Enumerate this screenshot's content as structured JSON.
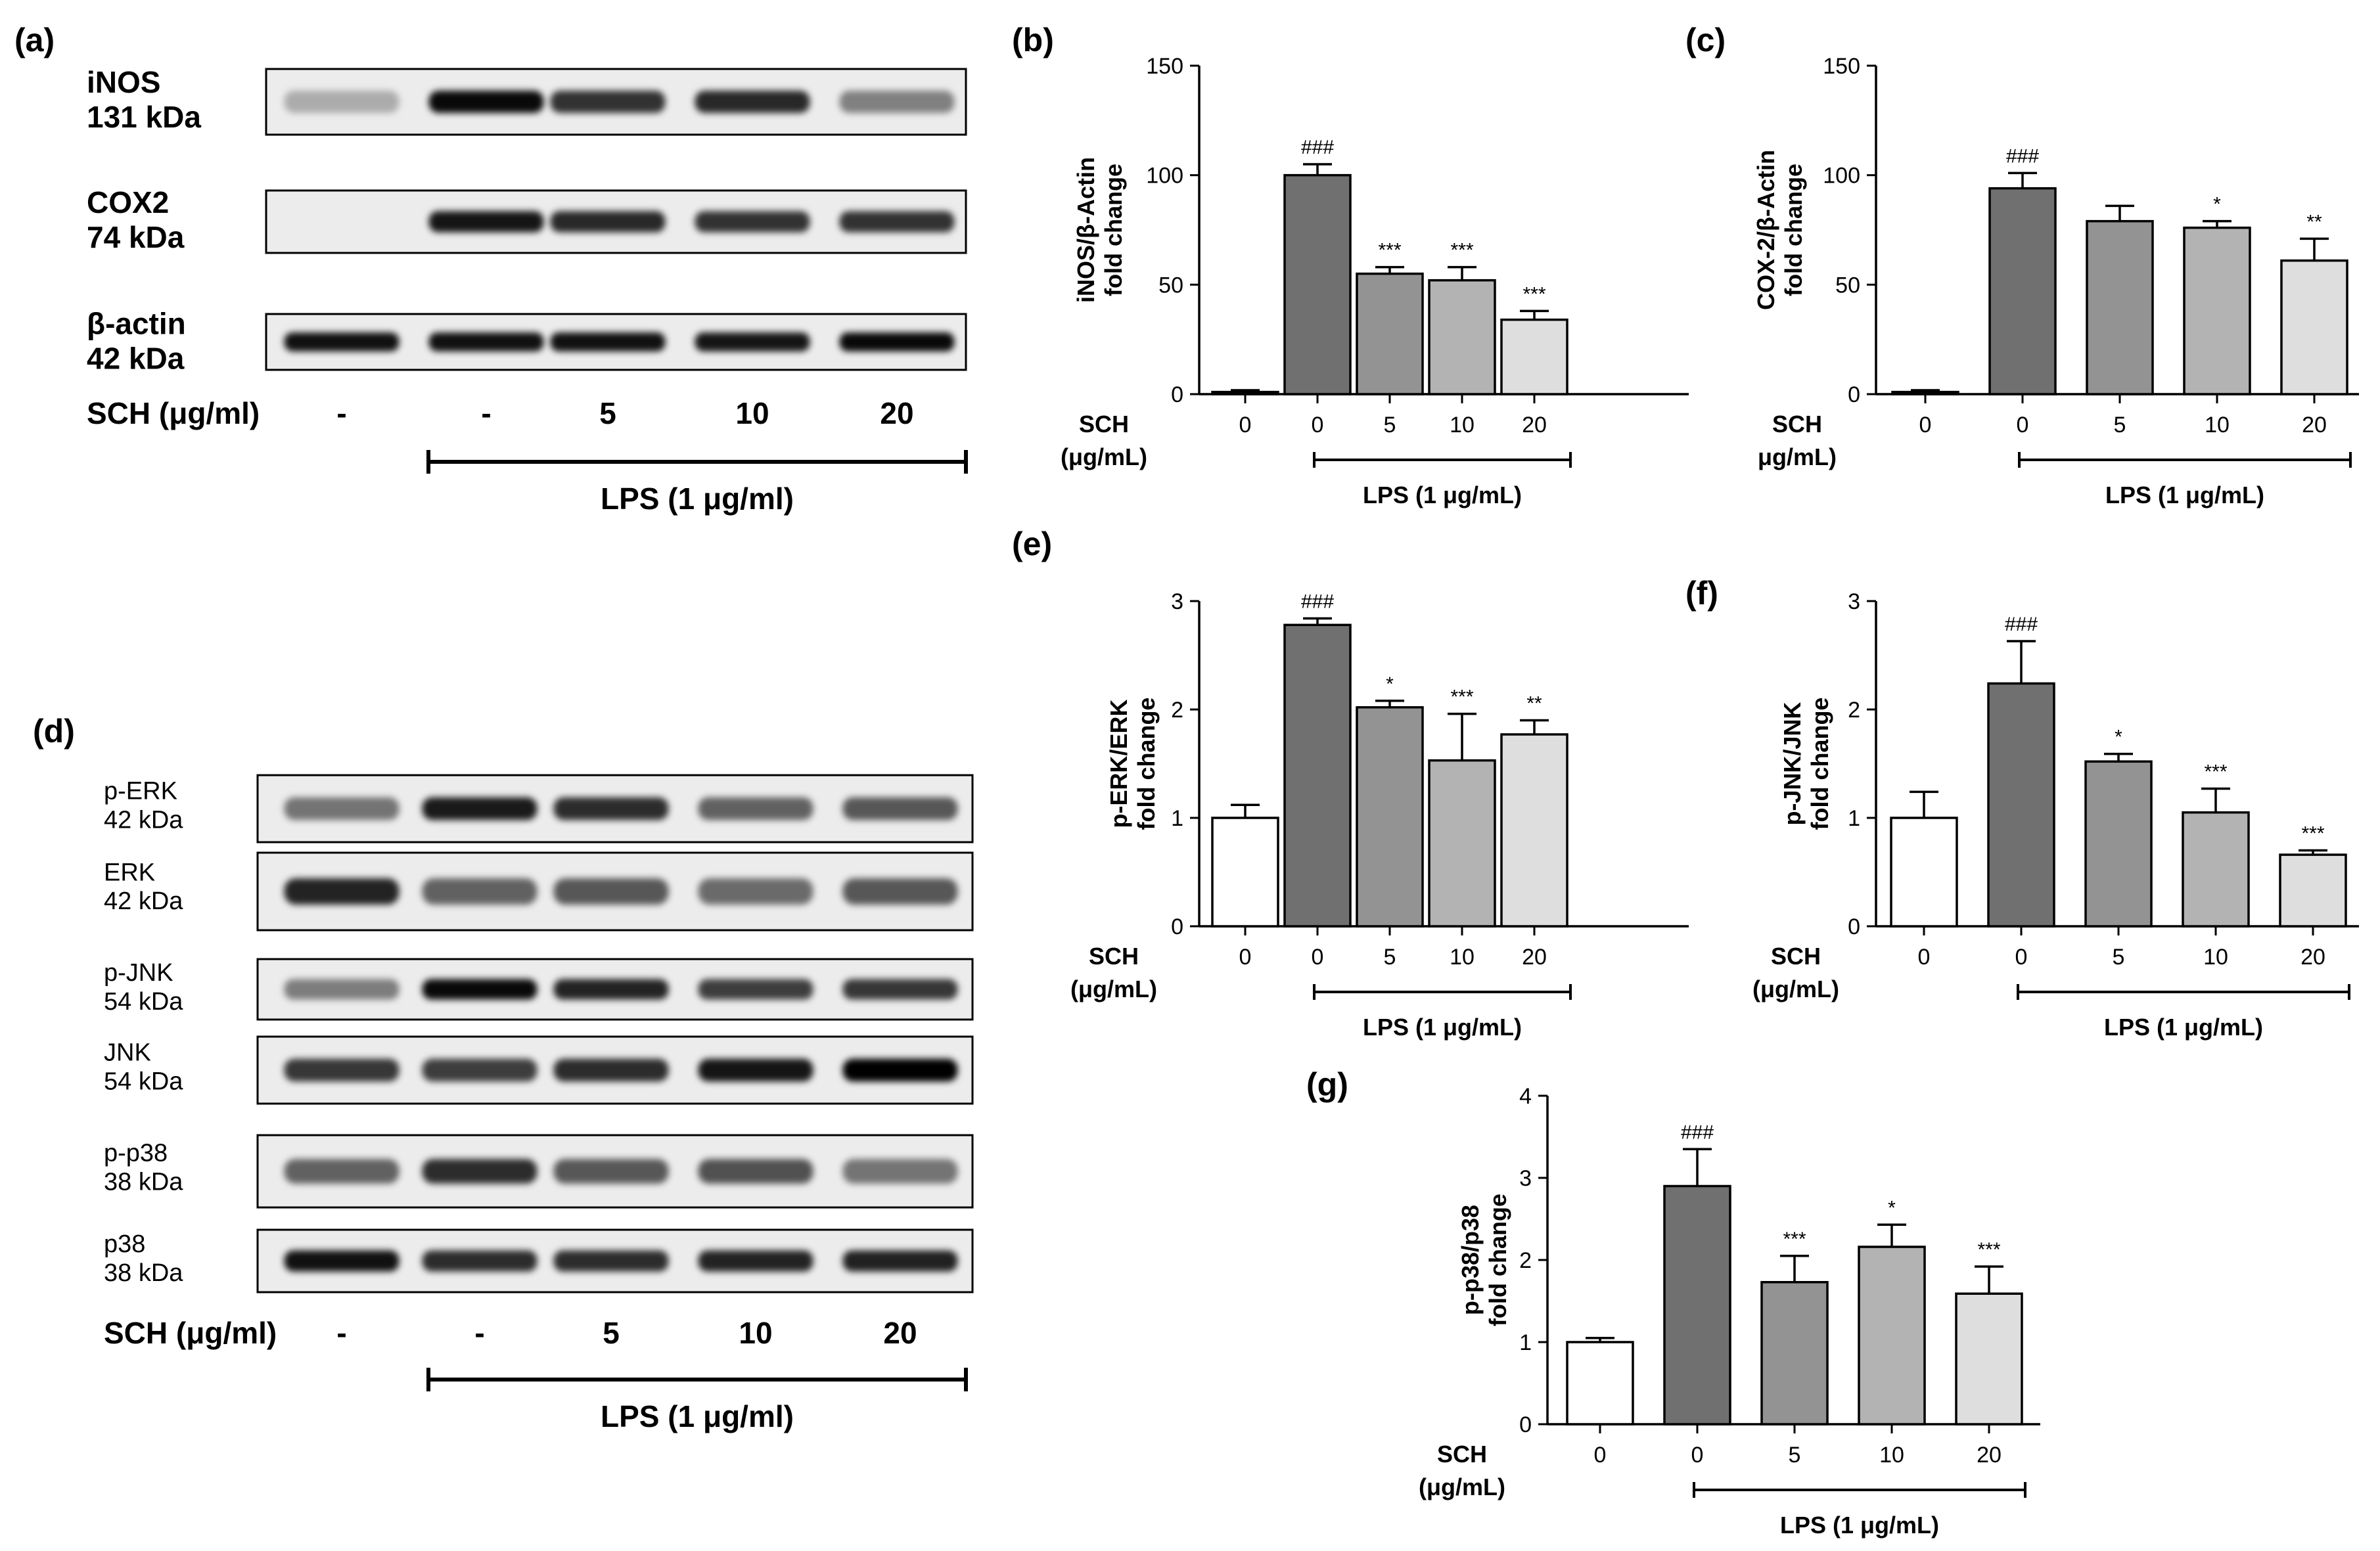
{
  "panel_labels": {
    "a": "(a)",
    "b": "(b)",
    "c": "(c)",
    "d": "(d)",
    "e": "(e)",
    "f": "(f)",
    "g": "(g)"
  },
  "blot_a": {
    "rows": [
      {
        "name": "iNOS",
        "kda": "131 kDa",
        "intensity": [
          0.03,
          0.95,
          0.72,
          0.78,
          0.28
        ]
      },
      {
        "name": "COX2",
        "kda": "74 kDa",
        "intensity": [
          0.0,
          0.88,
          0.78,
          0.72,
          0.72
        ]
      },
      {
        "name": "β-actin",
        "kda": "42 kDa",
        "intensity": [
          0.9,
          0.9,
          0.9,
          0.88,
          0.95
        ]
      }
    ],
    "sch_label": "SCH  (μg/ml)",
    "lanes": [
      "-",
      "-",
      "5",
      "10",
      "20"
    ],
    "lps_label": "LPS (1 μg/ml)"
  },
  "blot_d": {
    "rows": [
      {
        "name": "p-ERK",
        "kda": "42 kDa",
        "intensity": [
          0.35,
          0.85,
          0.75,
          0.45,
          0.5
        ]
      },
      {
        "name": "ERK",
        "kda": "42 kDa",
        "intensity": [
          0.8,
          0.45,
          0.5,
          0.4,
          0.5
        ]
      },
      {
        "name": "p-JNK",
        "kda": "54 kDa",
        "intensity": [
          0.3,
          0.95,
          0.8,
          0.65,
          0.7
        ]
      },
      {
        "name": "JNK",
        "kda": "54 kDa",
        "intensity": [
          0.7,
          0.65,
          0.75,
          0.88,
          1.0
        ]
      },
      {
        "name": "p-p38",
        "kda": "38 kDa",
        "intensity": [
          0.45,
          0.75,
          0.5,
          0.55,
          0.35
        ]
      },
      {
        "name": "p38",
        "kda": "38 kDa",
        "intensity": [
          0.9,
          0.75,
          0.75,
          0.8,
          0.82
        ]
      }
    ],
    "sch_label": "SCH  (μg/ml)",
    "lanes": [
      "-",
      "-",
      "5",
      "10",
      "20"
    ],
    "lps_label": "LPS (1 μg/ml)"
  },
  "chart_data": [
    {
      "id": "b",
      "type": "bar",
      "categories": [
        "0",
        "0",
        "5",
        "10",
        "20"
      ],
      "values": [
        1,
        100,
        55,
        52,
        34
      ],
      "errors": [
        0.8,
        5,
        3,
        6,
        4
      ],
      "significance": [
        "",
        "###",
        "***",
        "***",
        "***"
      ],
      "ylabel": [
        "iNOS/β-Actin",
        "fold change"
      ],
      "ylim": [
        0,
        150
      ],
      "yticks": [
        "0",
        "50",
        "100",
        "150"
      ],
      "sch_label": [
        "SCH",
        "(μg/mL)"
      ],
      "lps_label": "LPS (1 μg/mL)",
      "bar_colors": [
        "#ffffff",
        "#707070",
        "#939393",
        "#b3b3b3",
        "#dedede"
      ]
    },
    {
      "id": "c",
      "type": "bar",
      "categories": [
        "0",
        "0",
        "5",
        "10",
        "20"
      ],
      "values": [
        1,
        94,
        79,
        76,
        61
      ],
      "errors": [
        0.8,
        7,
        7,
        3,
        10
      ],
      "significance": [
        "",
        "###",
        "",
        "*",
        "**"
      ],
      "ylabel": [
        "COX-2/β-Actin",
        "fold change"
      ],
      "ylim": [
        0,
        150
      ],
      "yticks": [
        "0",
        "50",
        "100",
        "150"
      ],
      "sch_label": [
        "SCH",
        "μg/mL)"
      ],
      "lps_label": "LPS (1 μg/mL)",
      "bar_colors": [
        "#ffffff",
        "#707070",
        "#939393",
        "#b3b3b3",
        "#dedede"
      ]
    },
    {
      "id": "e",
      "type": "bar",
      "categories": [
        "0",
        "0",
        "5",
        "10",
        "20"
      ],
      "values": [
        1.0,
        2.78,
        2.02,
        1.53,
        1.77
      ],
      "errors": [
        0.12,
        0.06,
        0.06,
        0.43,
        0.13
      ],
      "significance": [
        "",
        "###",
        "*",
        "***",
        "**"
      ],
      "ylabel": [
        "p-ERK/ERK",
        "fold change"
      ],
      "ylim": [
        0,
        3
      ],
      "yticks": [
        "0",
        "1",
        "2",
        "3"
      ],
      "sch_label": [
        "SCH",
        "(μg/mL)"
      ],
      "lps_label": "LPS (1 μg/mL)",
      "bar_colors": [
        "#ffffff",
        "#707070",
        "#939393",
        "#b3b3b3",
        "#dedede"
      ]
    },
    {
      "id": "f",
      "type": "bar",
      "categories": [
        "0",
        "0",
        "5",
        "10",
        "20"
      ],
      "values": [
        1.0,
        2.24,
        1.52,
        1.05,
        0.66
      ],
      "errors": [
        0.24,
        0.39,
        0.07,
        0.22,
        0.04
      ],
      "significance": [
        "",
        "###",
        "*",
        "***",
        "***"
      ],
      "ylabel": [
        "p-JNK/JNK",
        "fold change"
      ],
      "ylim": [
        0,
        3
      ],
      "yticks": [
        "0",
        "1",
        "2",
        "3"
      ],
      "sch_label": [
        "SCH",
        "(μg/mL)"
      ],
      "lps_label": "LPS (1 μg/mL)",
      "bar_colors": [
        "#ffffff",
        "#707070",
        "#939393",
        "#b3b3b3",
        "#dedede"
      ]
    },
    {
      "id": "g",
      "type": "bar",
      "categories": [
        "0",
        "0",
        "5",
        "10",
        "20"
      ],
      "values": [
        1.0,
        2.9,
        1.73,
        2.16,
        1.59
      ],
      "errors": [
        0.05,
        0.45,
        0.32,
        0.27,
        0.33
      ],
      "significance": [
        "",
        "###",
        "***",
        "*",
        "***"
      ],
      "ylabel": [
        "p-p38/p38",
        "fold change"
      ],
      "ylim": [
        0,
        4
      ],
      "yticks": [
        "0",
        "1",
        "2",
        "3",
        "4"
      ],
      "sch_label": [
        "SCH",
        "(μg/mL)"
      ],
      "lps_label": "LPS (1 μg/mL)",
      "bar_colors": [
        "#ffffff",
        "#707070",
        "#939393",
        "#b3b3b3",
        "#dedede"
      ]
    }
  ]
}
